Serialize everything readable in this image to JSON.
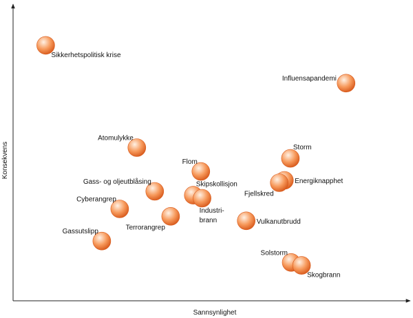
{
  "chart_data": {
    "type": "scatter",
    "title": "",
    "xlabel": "Sannsynlighet",
    "ylabel": "Konsekvens",
    "xlim": [
      0,
      100
    ],
    "ylim": [
      0,
      100
    ],
    "grid": false,
    "legend": "none",
    "points": [
      {
        "label": "Sikkerhetspolitisk krise",
        "x": 8.2,
        "y": 85.9,
        "label_pos": "below-right"
      },
      {
        "label": "Influensapandemi",
        "x": 83.7,
        "y": 73.2,
        "label_pos": "left"
      },
      {
        "label": "Atomulykke",
        "x": 31.1,
        "y": 51.5,
        "label_pos": "above-left"
      },
      {
        "label": "Storm",
        "x": 69.7,
        "y": 47.9,
        "label_pos": "above-right"
      },
      {
        "label": "Flom",
        "x": 47.2,
        "y": 43.5,
        "label_pos": "above-left"
      },
      {
        "label": "Energiknapphet",
        "x": 68.2,
        "y": 40.5,
        "label_pos": "right"
      },
      {
        "label": "Fjellskred",
        "x": 66.9,
        "y": 39.7,
        "label_pos": "below-left"
      },
      {
        "label": "Gass- og oljeutblåsing",
        "x": 35.6,
        "y": 36.8,
        "label_pos": "above-left"
      },
      {
        "label": "Skipskollisjon",
        "x": 45.3,
        "y": 35.5,
        "label_pos": "above-right"
      },
      {
        "label": "Industri-\nbrann",
        "x": 47.5,
        "y": 34.5,
        "label_pos": "below"
      },
      {
        "label": "Cyberangrep",
        "x": 26.8,
        "y": 30.9,
        "label_pos": "above-left"
      },
      {
        "label": "Terrorangrep",
        "x": 39.6,
        "y": 28.4,
        "label_pos": "below-left"
      },
      {
        "label": "Vulkanutbrudd",
        "x": 58.6,
        "y": 26.9,
        "label_pos": "right"
      },
      {
        "label": "Gassutslipp",
        "x": 22.3,
        "y": 20.1,
        "label_pos": "above-left"
      },
      {
        "label": "Solstorm",
        "x": 69.9,
        "y": 12.9,
        "label_pos": "above-left"
      },
      {
        "label": "Skogbrann",
        "x": 72.5,
        "y": 11.9,
        "label_pos": "below-right"
      }
    ]
  },
  "colors": {
    "bubble_light": "#fff1e4",
    "bubble_mid": "#f79a5c",
    "bubble_dark": "#d7581a",
    "axis": "#222222",
    "text": "#111111"
  }
}
